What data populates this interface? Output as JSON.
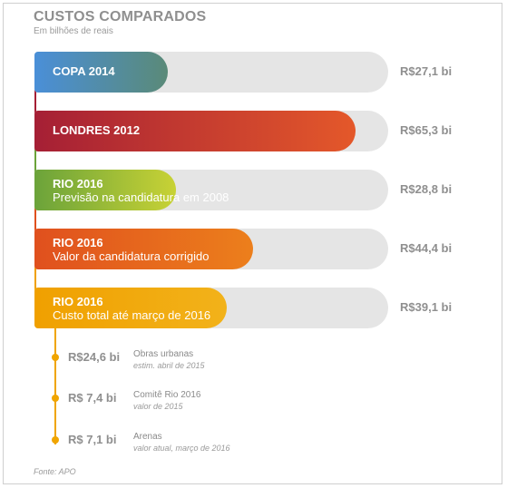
{
  "title": "CUSTOS COMPARADOS",
  "subtitle": "Em bilhões de reais",
  "source": "Fonte: APO",
  "chart_data": {
    "type": "bar",
    "title": "CUSTOS COMPARADOS",
    "subtitle": "Em bilhões de reais",
    "xlim": [
      0,
      72
    ],
    "bars": [
      {
        "label": "COPA 2014",
        "sublabel": "",
        "value": 27.1,
        "value_label": "R$27,1 bi",
        "color_start": "#4a8fd8",
        "color_end": "#5a8a78"
      },
      {
        "label": "LONDRES 2012",
        "sublabel": "",
        "value": 65.3,
        "value_label": "R$65,3 bi",
        "color_start": "#a51f35",
        "color_end": "#e4582a"
      },
      {
        "label": "RIO 2016",
        "sublabel": "Previsão na candidatura em 2008",
        "value": 28.8,
        "value_label": "R$28,8 bi",
        "color_start": "#6ba33a",
        "color_end": "#c8d235"
      },
      {
        "label": "RIO 2016",
        "sublabel": "Valor da candidatura corrigido",
        "value": 44.4,
        "value_label": "R$44,4 bi",
        "color_start": "#e0501e",
        "color_end": "#ec7f1c"
      },
      {
        "label": "RIO 2016",
        "sublabel": "Custo total até março de 2016",
        "value": 39.1,
        "value_label": "R$39,1 bi",
        "color_start": "#f0a000",
        "color_end": "#f2b21a"
      }
    ],
    "breakdown": [
      {
        "value": 24.6,
        "value_label": "R$24,6 bi",
        "name": "Obras urbanas",
        "note": "estim. abril de 2015"
      },
      {
        "value": 7.4,
        "value_label": "R$ 7,4 bi",
        "name": "Comitê Rio 2016",
        "note": "valor de 2015"
      },
      {
        "value": 7.1,
        "value_label": "R$ 7,1 bi",
        "name": "Arenas",
        "note": "valor atual, março de 2016"
      }
    ]
  }
}
